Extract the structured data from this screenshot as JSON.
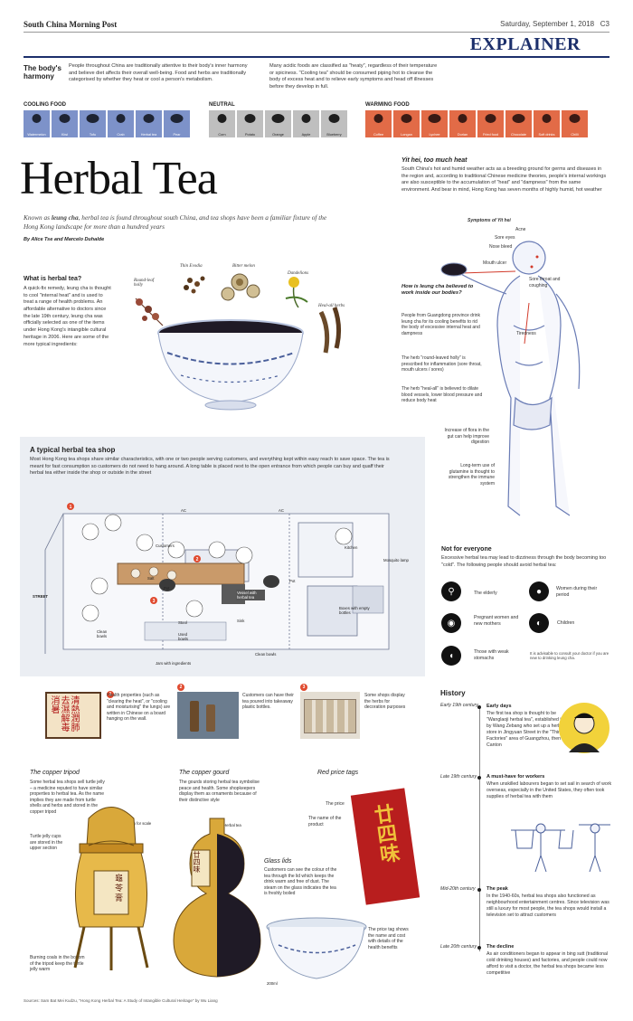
{
  "header": {
    "publication": "South China Morning Post",
    "date": "Saturday, September 1, 2018",
    "page": "C3",
    "section": "EXPLAINER"
  },
  "harmony": {
    "title": "The body's harmony",
    "col1": "People throughout China are traditionally attentive to their body's inner harmony and believe diet affects their overall well-being. Food and herbs are traditionally categorised by whether they heat or cool a person's metabolism.",
    "col2": "Many acidic foods are classified as \"heaty\", regardless of their temperature or spiciness. \"Cooling tea\" should be consumed piping hot to cleanse the body of excess heat and to relieve early symptoms and head off illnesses before they develop in full."
  },
  "food_groups": {
    "cooling_label": "COOLING FOOD",
    "neutral_label": "NEUTRAL",
    "warming_label": "WARMING FOOD",
    "cooling": [
      "Watermelon",
      "Kiwi",
      "Tofu",
      "Crab",
      "Herbal tea",
      "Pear"
    ],
    "neutral": [
      "Corn",
      "Potato",
      "Orange",
      "Apple",
      "Blueberry"
    ],
    "warming": [
      "Coffee",
      "Longan",
      "Lychee",
      "Durian",
      "Fried food",
      "Chocolate",
      "Soft drinks",
      "Chilli"
    ]
  },
  "title": "Herbal Tea",
  "intro_prefix": "Known as ",
  "intro_term": "leung cha",
  "intro_rest": ", herbal tea is found throughout south China, and tea shops have been a familiar fixture of the Hong Kong landscape for more than a hundred years",
  "byline": "By Alice Tse and Marcelo Duhalde",
  "what_is": {
    "heading": "What is herbal tea?",
    "text": "A quick-fix remedy, leung cha is thought to cool \"internal heat\" and is used to treat a range of health problems. An affordable alternative to doctors since the late 19th century, leung cha was officially selected as one of the items under Hong Kong's intangible cultural heritage in 2006. Here are some of the more typical ingredients:"
  },
  "herbs": [
    "Round-leaf holly",
    "Thin Evodia",
    "Bitter melon",
    "Dandelions",
    "Heal-all herbs"
  ],
  "yit_hei": {
    "heading": "Yit hei, too much heat",
    "text": "South China's hot and humid weather acts as a breeding ground for germs and diseases in the region and, according to traditional Chinese medicine theories, people's internal workings are also susceptible to the accumulation of \"heat\" and \"dampness\" from the same environment. And bear in mind, Hong Kong has seven months of highly humid, hot weather"
  },
  "symptoms": {
    "title": "Symptoms of Yit hei",
    "items": [
      "Acne",
      "Sore eyes",
      "Nose bleed",
      "Mouth ulcer",
      "Sore throat and coughing",
      "Tiredness"
    ]
  },
  "how_works": {
    "heading": "How is leung cha believed to work inside our bodies?",
    "p1": "People from Guangdong province drink leung cha for its cooling benefits to rid the body of excessive internal heat and dampness",
    "p2": "The herb \"round-leaved holly\" is prescribed for inflammation (sore throat, mouth ulcers / sores)",
    "p3": "The herb \"heal-all\" is believed to dilate blood vessels, lower blood pressure and reduce body heat",
    "p4": "Increase of flora in the gut can help improve digestion",
    "p5": "Long-term use of glutamine is thought to strengthen the immune system"
  },
  "shop": {
    "heading": "A typical herbal tea shop",
    "text": "Most Hong Kong tea shops share similar characteristics, with one or two people serving customers, and everything kept within easy reach to save space. The tea is meant for fast consumption so customers do not need to hang around. A long table is placed next to the open entrance from which people can buy and quaff their herbal tea either inside the shop or outside in the street",
    "labels": {
      "ac1": "AC",
      "ac2": "AC",
      "customers": "Customers",
      "kitchen": "Kitchen",
      "mosquito": "Mosquito lamp",
      "street": "STREET",
      "salt": "Salt",
      "pot1": "Pot",
      "pot2": "Pot",
      "vessel": "Vessel with herbal tea",
      "sink": "Sink",
      "boxes": "Boxes with empty bottles",
      "clean_bowls1": "Clean bowls",
      "used_bowls": "Used bowls",
      "stool": "Stool",
      "clean_bowls2": "Clean bowls",
      "jars": "Jars with ingredients"
    },
    "badges": [
      "1",
      "2",
      "3"
    ]
  },
  "notes": [
    {
      "num": "1",
      "text": "Health properties (such as \"clearing the heat\", or \"cooling and moisturising\" the lungs) are written in Chinese on a board hanging on the wall."
    },
    {
      "num": "2",
      "text": "Customers can have their tea poured into takeaway plastic bottles."
    },
    {
      "num": "3",
      "text": "Some shops display the herbs for decoration purposes"
    }
  ],
  "sign_chars": "清熱潤肺去濕解毒消暑",
  "copper_tripod": {
    "heading": "The copper tripod",
    "p1": "Some herbal tea shops sell turtle jelly – a medicine reputed to have similar properties to herbal tea. As the name implies they are made from turtle shells and herbs and stored in the copper tripod",
    "scale": "Human for scale",
    "p2": "Turtle jelly cups are stored in the upper section",
    "p3": "Burning coals in the bottom of the tripod keep the turtle jelly warm",
    "chars": "龜苓膏"
  },
  "copper_gourd": {
    "heading": "The copper gourd",
    "p1": "The gourds storing herbal tea symbolise peace and health. Some shopkeepers display them as ornaments because of their distinctive style",
    "label": "Herbal tea",
    "chars": "廿四味"
  },
  "price_tags": {
    "heading": "Red price tags",
    "price_label": "The price",
    "name_label": "The name of the product",
    "chars": "廿四味",
    "tag_note": "The price tag shows the name and cost with details of the health benefits"
  },
  "glass_lids": {
    "heading": "Glass lids",
    "text": "Customers can see the colour of the tea through the lid which keeps the drink warm and free of dust. The steam on the glass indicates the tea is freshly boiled",
    "ml": "200ml"
  },
  "not_everyone": {
    "heading": "Not for everyone",
    "text": "Excessive herbal tea may lead to dizziness through the body becoming too \"cold\". The following people should avoid herbal tea:",
    "groups": [
      "The elderly",
      "Women during their period",
      "Pregnant women and new mothers",
      "Children",
      "Those with weak stomachs"
    ],
    "advice": "It is advisable to consult your doctor if you are new to drinking leung cha."
  },
  "history": {
    "heading": "History",
    "items": [
      {
        "era": "Early 19th century",
        "title": "Early days",
        "text": "The first tea shop is thought to be \"Wanglaoji herbal tea\", established in 1828 by Wang Zebang who set up a herbal tea store in Jingyuan Street in the \"Thirteen Factories\" area of Guangzhou, then Canton"
      },
      {
        "era": "Late 19th century",
        "title": "A must-have for workers",
        "text": "When unskilled labourers began to set sail in search of work overseas, especially in the United States, they often took supplies of herbal tea with them"
      },
      {
        "era": "Mid-20th century",
        "title": "The peak",
        "text": "In the 1940-60s, herbal tea shops also functioned as neighbourhood entertainment centres. Since television was still a luxury for most people, the tea shops would install a television set to attract customers"
      },
      {
        "era": "Late 20th century",
        "title": "The decline",
        "text": "As air conditioners began to appear in bing sutt (traditional cold drinking houses) and factories, and people could now afford to visit a doctor, the herbal tea shops became less competitive"
      }
    ]
  },
  "sources": "Sources: Sam Bat Mei Kudzu, \"Hong Kong Herbal Tea: A Study of Intangible Cultural Heritage\" by Wu Liang",
  "colors": {
    "cool": "#7d92c9",
    "warm": "#e26b47",
    "neutral": "#bfbfbf",
    "navy": "#1c2f6b",
    "red": "#e04a2f"
  }
}
